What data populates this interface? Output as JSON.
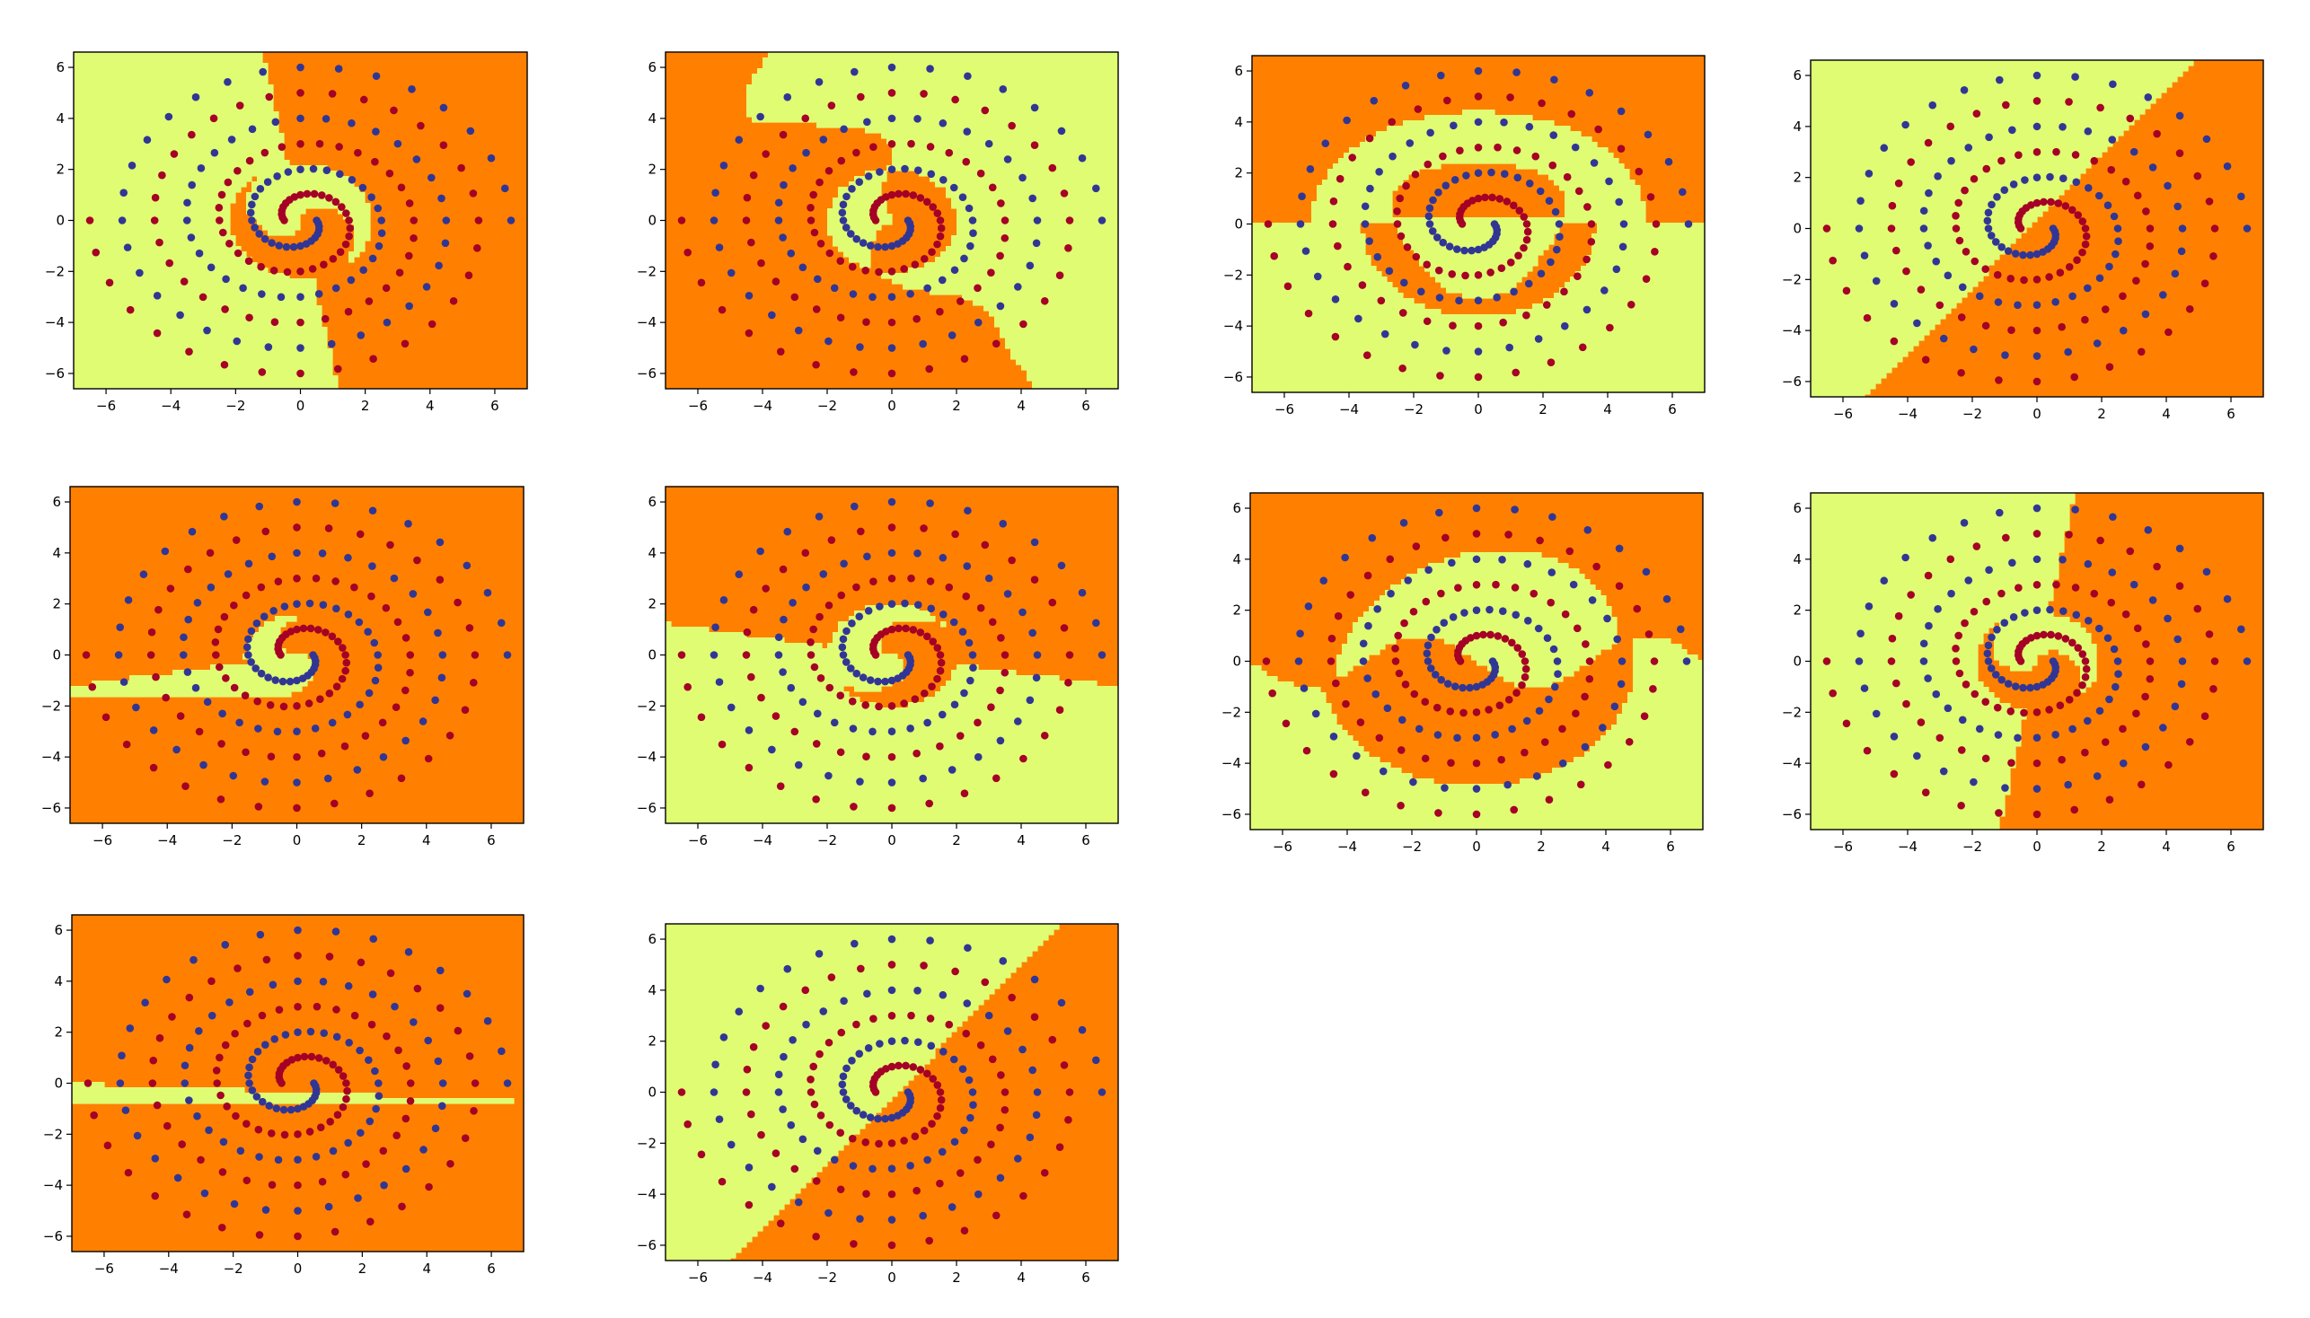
{
  "colors": {
    "class_a_region": "#e0fc73",
    "class_b_region": "#ff8000",
    "class_a_point": "#313695",
    "class_b_point": "#a50026",
    "axes_frame": "#000000",
    "background": "#ffffff"
  },
  "chart_data": [
    {
      "type": "scatter",
      "title": "",
      "xlabel": "",
      "ylabel": "",
      "xlim": [
        -7,
        7
      ],
      "ylim": [
        -6.6,
        6.6
      ],
      "xticks": [
        "−6",
        "−4",
        "−2",
        "0",
        "2",
        "4",
        "6"
      ],
      "yticks": [
        "6",
        "4",
        "2",
        "0",
        "−2",
        "−4",
        "−6"
      ],
      "boundary": "ortho",
      "params": [
        100,
        0.6,
        1.8
      ],
      "grid": false,
      "legend": "none",
      "series": [
        {
          "name": "",
          "dataset": "two interleaved spirals, 97 points each"
        },
        {
          "name": "",
          "dataset": "two interleaved spirals, 97 points each"
        }
      ]
    },
    {
      "type": "scatter",
      "title": "",
      "xlabel": "",
      "ylabel": "",
      "xlim": [
        -7,
        7
      ],
      "ylim": [
        -6.6,
        6.6
      ],
      "xticks": [
        "−6",
        "−4",
        "−2",
        "0",
        "2",
        "4",
        "6"
      ],
      "yticks": [
        "6",
        "4",
        "2",
        "0",
        "−2",
        "−4",
        "−6"
      ],
      "boundary": "wavy",
      "params": [
        300,
        1.2,
        2.0
      ],
      "grid": false,
      "legend": "none",
      "series": [
        {
          "name": "",
          "dataset": "two interleaved spirals, 97 points each"
        },
        {
          "name": "",
          "dataset": "two interleaved spirals, 97 points each"
        }
      ]
    },
    {
      "type": "scatter",
      "title": "",
      "xlabel": "",
      "ylabel": "",
      "xlim": [
        -7,
        7
      ],
      "ylim": [
        -6.6,
        6.6
      ],
      "xticks": [
        "−6",
        "−4",
        "−2",
        "0",
        "2",
        "4",
        "6"
      ],
      "yticks": [
        "6",
        "4",
        "2",
        "0",
        "−2",
        "−4",
        "−6"
      ],
      "boundary": "rings",
      "params": [
        0,
        2.6,
        4.8
      ],
      "grid": false,
      "legend": "none",
      "series": [
        {
          "name": "",
          "dataset": "two interleaved spirals, 97 points each"
        },
        {
          "name": "",
          "dataset": "two interleaved spirals, 97 points each"
        }
      ]
    },
    {
      "type": "scatter",
      "title": "",
      "xlabel": "",
      "ylabel": "",
      "xlim": [
        -7,
        7
      ],
      "ylim": [
        -6.6,
        6.6
      ],
      "xticks": [
        "−6",
        "−4",
        "−2",
        "0",
        "2",
        "4",
        "6"
      ],
      "yticks": [
        "6",
        "4",
        "2",
        "0",
        "−2",
        "−4",
        "−6"
      ],
      "boundary": "linear",
      "params": [
        1.4,
        -1.1,
        0.3
      ],
      "grid": false,
      "legend": "none",
      "series": [
        {
          "name": "",
          "dataset": "two interleaved spirals, 97 points each"
        },
        {
          "name": "",
          "dataset": "two interleaved spirals, 97 points each"
        }
      ]
    },
    {
      "type": "scatter",
      "title": "",
      "xlabel": "",
      "ylabel": "",
      "xlim": [
        -7,
        7
      ],
      "ylim": [
        -6.6,
        6.6
      ],
      "xticks": [
        "−6",
        "−4",
        "−2",
        "0",
        "2",
        "4",
        "6"
      ],
      "yticks": [
        "6",
        "4",
        "2",
        "0",
        "−2",
        "−4",
        "−6"
      ],
      "boundary": "ortho",
      "params": [
        190,
        0.2,
        1.2
      ],
      "grid": false,
      "legend": "none",
      "series": [
        {
          "name": "",
          "dataset": "two interleaved spirals, 97 points each"
        },
        {
          "name": "",
          "dataset": "two interleaved spirals, 97 points each"
        }
      ]
    },
    {
      "type": "scatter",
      "title": "",
      "xlabel": "",
      "ylabel": "",
      "xlim": [
        -7,
        7
      ],
      "ylim": [
        -6.6,
        6.6
      ],
      "xticks": [
        "−6",
        "−4",
        "−2",
        "0",
        "2",
        "4",
        "6"
      ],
      "yticks": [
        "6",
        "4",
        "2",
        "0",
        "−2",
        "−4",
        "−6"
      ],
      "boundary": "ortho",
      "params": [
        170,
        0.8,
        1.6
      ],
      "grid": false,
      "legend": "none",
      "series": [
        {
          "name": "",
          "dataset": "two interleaved spirals, 97 points each"
        },
        {
          "name": "",
          "dataset": "two interleaved spirals, 97 points each"
        }
      ]
    },
    {
      "type": "scatter",
      "title": "",
      "xlabel": "",
      "ylabel": "",
      "xlim": [
        -7,
        7
      ],
      "ylim": [
        -6.6,
        6.6
      ],
      "xticks": [
        "−6",
        "−4",
        "−2",
        "0",
        "2",
        "4",
        "6"
      ],
      "yticks": [
        "6",
        "4",
        "2",
        "0",
        "−2",
        "−4",
        "−6"
      ],
      "boundary": "band",
      "params": [
        0,
        1.0,
        4.3
      ],
      "grid": false,
      "legend": "none",
      "series": [
        {
          "name": "",
          "dataset": "two interleaved spirals, 97 points each"
        },
        {
          "name": "",
          "dataset": "two interleaved spirals, 97 points each"
        }
      ]
    },
    {
      "type": "scatter",
      "title": "",
      "xlabel": "",
      "ylabel": "",
      "xlim": [
        -7,
        7
      ],
      "ylim": [
        -6.6,
        6.6
      ],
      "xticks": [
        "−6",
        "−4",
        "−2",
        "0",
        "2",
        "4",
        "6"
      ],
      "yticks": [
        "6",
        "4",
        "2",
        "0",
        "−2",
        "−4",
        "−6"
      ],
      "boundary": "ortho",
      "params": [
        80,
        0.5,
        1.5
      ],
      "grid": false,
      "legend": "none",
      "series": [
        {
          "name": "",
          "dataset": "two interleaved spirals, 97 points each"
        },
        {
          "name": "",
          "dataset": "two interleaved spirals, 97 points each"
        }
      ]
    },
    {
      "type": "scatter",
      "title": "",
      "xlabel": "",
      "ylabel": "",
      "xlim": [
        -7,
        7
      ],
      "ylim": [
        -6.6,
        6.6
      ],
      "xticks": [
        "−6",
        "−4",
        "−2",
        "0",
        "2",
        "4",
        "6"
      ],
      "yticks": [
        "6",
        "4",
        "2",
        "0",
        "−2",
        "−4",
        "−6"
      ],
      "boundary": "linear",
      "params": [
        0.05,
        1.0,
        0.35
      ],
      "grid": false,
      "legend": "none",
      "series": [
        {
          "name": "",
          "dataset": "two interleaved spirals, 97 points each"
        },
        {
          "name": "",
          "dataset": "two interleaved spirals, 97 points each"
        }
      ]
    },
    {
      "type": "scatter",
      "title": "",
      "xlabel": "",
      "ylabel": "",
      "xlim": [
        -7,
        7
      ],
      "ylim": [
        -6.6,
        6.6
      ],
      "xticks": [
        "−6",
        "−4",
        "−2",
        "0",
        "2",
        "4",
        "6"
      ],
      "yticks": [
        "6",
        "4",
        "2",
        "0",
        "−2",
        "−4",
        "−6"
      ],
      "boundary": "linear",
      "params": [
        1.3,
        -1.0,
        -0.2
      ],
      "grid": false,
      "legend": "none",
      "series": [
        {
          "name": "",
          "dataset": "two interleaved spirals, 97 points each"
        },
        {
          "name": "",
          "dataset": "two interleaved spirals, 97 points each"
        }
      ]
    }
  ]
}
